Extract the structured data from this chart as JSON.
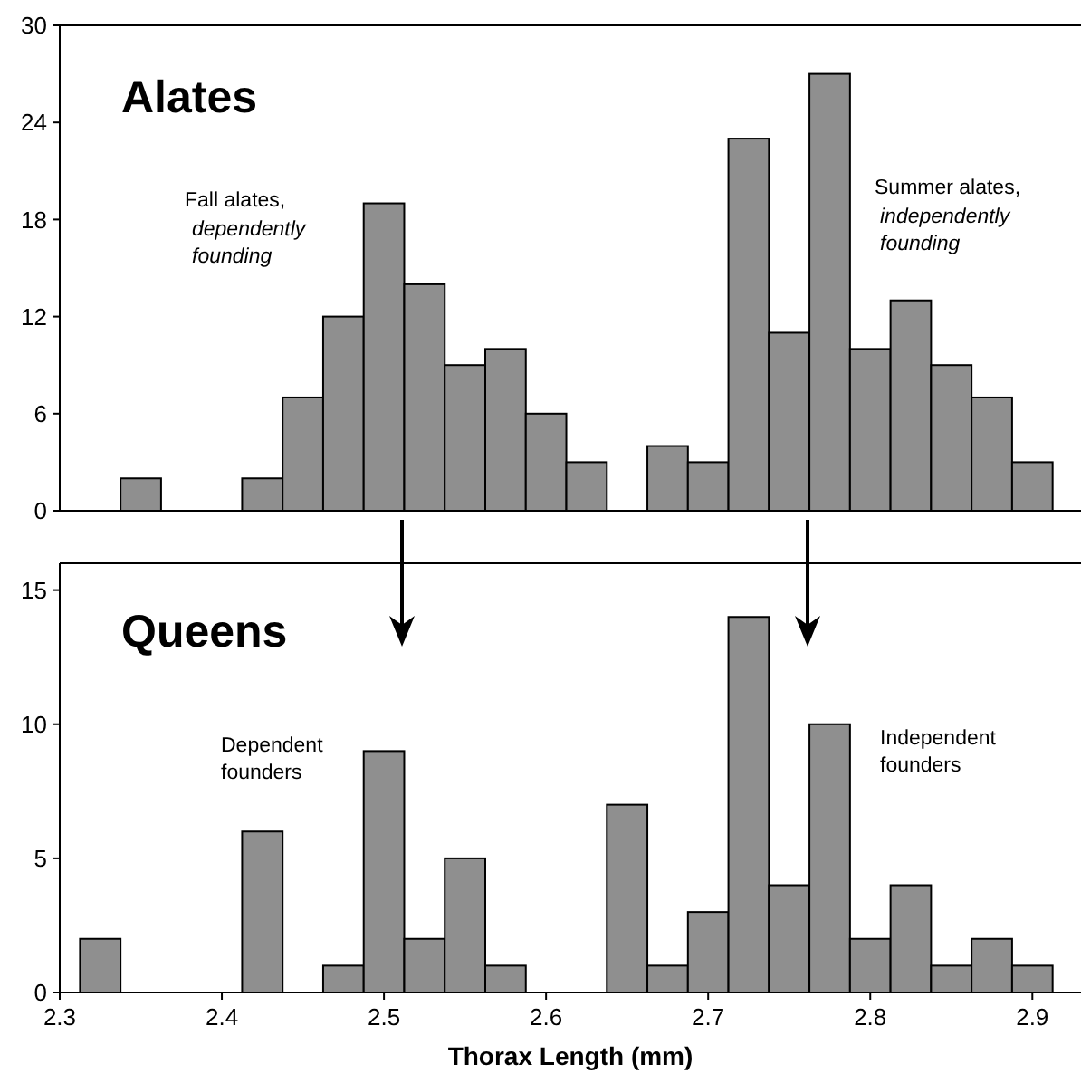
{
  "chart_data": [
    {
      "type": "histogram",
      "title": "Alates",
      "annotations": [
        "Fall alates,",
        "dependently founding",
        "Summer alates,",
        "independently founding"
      ],
      "bins": [
        2.3125,
        2.3375,
        2.3625,
        2.3875,
        2.4125,
        2.4375,
        2.4625,
        2.4875,
        2.5125,
        2.5375,
        2.5625,
        2.5875,
        2.6125,
        2.6375,
        2.6625,
        2.6875,
        2.7125,
        2.7375,
        2.7625,
        2.7875,
        2.8125,
        2.8375,
        2.8625,
        2.8875,
        2.9125
      ],
      "values": [
        0,
        2,
        0,
        0,
        2,
        7,
        12,
        19,
        14,
        9,
        10,
        6,
        3,
        0,
        4,
        3,
        23,
        11,
        27,
        10,
        13,
        9,
        7,
        3
      ],
      "color": "#8f8f8f",
      "xlim": [
        2.3,
        2.93
      ],
      "ylim": [
        0,
        30
      ],
      "yticks": [
        0,
        6,
        12,
        18,
        24,
        30
      ],
      "tick_labels": "y",
      "grid": false
    },
    {
      "type": "histogram",
      "title": "Queens",
      "xlabel": "Thorax Length (mm)",
      "annotations": [
        "Dependent founders",
        "Independent founders"
      ],
      "bins": [
        2.3125,
        2.3375,
        2.3625,
        2.3875,
        2.4125,
        2.4375,
        2.4625,
        2.4875,
        2.5125,
        2.5375,
        2.5625,
        2.5875,
        2.6125,
        2.6375,
        2.6625,
        2.6875,
        2.7125,
        2.7375,
        2.7625,
        2.7875,
        2.8125,
        2.8375,
        2.8625,
        2.8875,
        2.9125
      ],
      "values": [
        2,
        0,
        0,
        0,
        6,
        0,
        1,
        9,
        2,
        5,
        1,
        0,
        0,
        7,
        1,
        3,
        14,
        4,
        10,
        2,
        4,
        1,
        2,
        1
      ],
      "color": "#8f8f8f",
      "xlim": [
        2.3,
        2.93
      ],
      "ylim": [
        0,
        16
      ],
      "xticks": [
        2.3,
        2.4,
        2.5,
        2.6,
        2.7,
        2.8,
        2.9
      ],
      "yticks": [
        0,
        5,
        10,
        15
      ],
      "grid": false
    }
  ]
}
